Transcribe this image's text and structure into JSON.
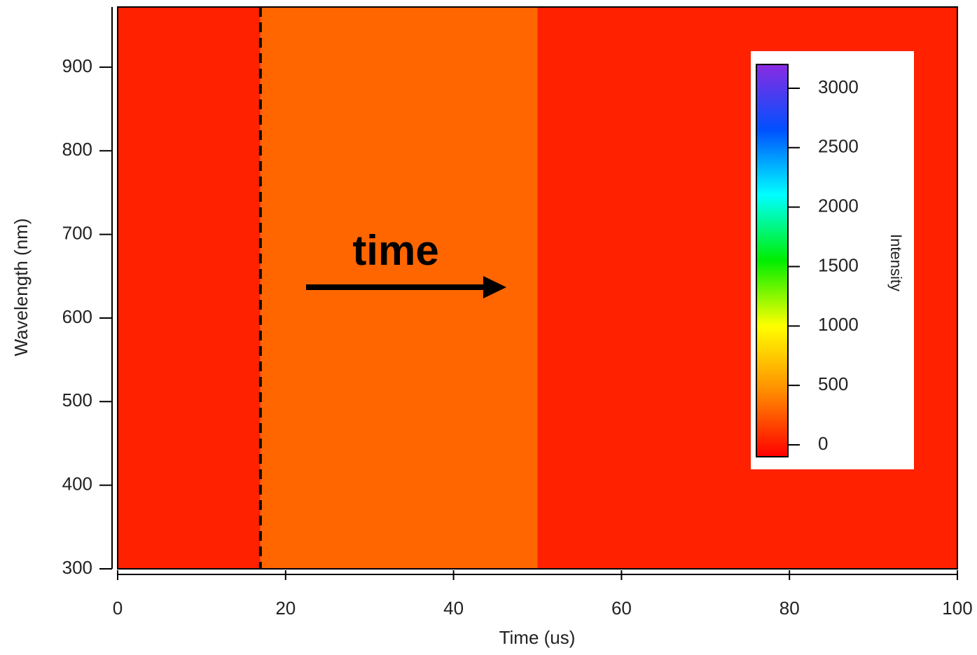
{
  "chart_data": {
    "type": "heatmap",
    "xlabel": "Time (us)",
    "ylabel": "Wavelength (nm)",
    "x_edges": [
      0,
      17,
      50,
      100
    ],
    "values": [
      30,
      300,
      30
    ],
    "xlim": [
      0,
      100
    ],
    "xticks": [
      0,
      20,
      40,
      60,
      80,
      100
    ],
    "ylim": [
      300,
      972
    ],
    "yticks": [
      300,
      400,
      500,
      600,
      700,
      800,
      900
    ],
    "vline": 17,
    "annotation": "time",
    "colorbar_label": "Intensity",
    "clim": [
      -100,
      3200
    ],
    "cticks": [
      0,
      500,
      1000,
      1500,
      2000,
      2500,
      3000
    ],
    "colormap": [
      "#ff0000",
      "#ff8c00",
      "#ffff00",
      "#00ee00",
      "#00ffff",
      "#0050ff",
      "#8a2be2"
    ]
  }
}
